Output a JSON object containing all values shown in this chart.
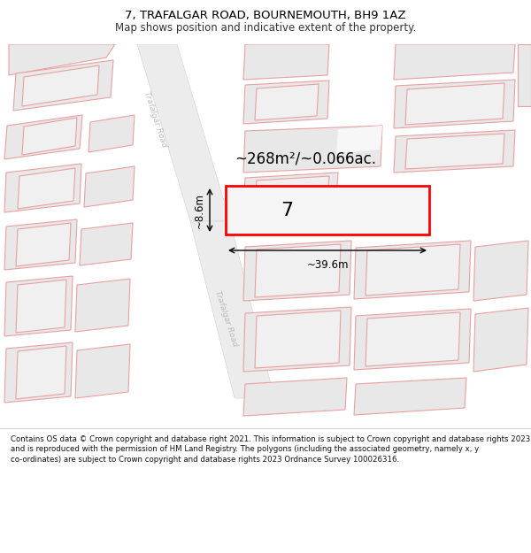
{
  "title": "7, TRAFALGAR ROAD, BOURNEMOUTH, BH9 1AZ",
  "subtitle": "Map shows position and indicative extent of the property.",
  "footer": "Contains OS data © Crown copyright and database right 2021. This information is subject to Crown copyright and database rights 2023 and is reproduced with the permission of HM Land Registry. The polygons (including the associated geometry, namely x, y co-ordinates) are subject to Crown copyright and database rights 2023 Ordnance Survey 100026316.",
  "area_text": "~268m²/~0.066ac.",
  "width_text": "~39.6m",
  "height_text": "~8.6m",
  "property_number": "7",
  "bg_color": "#ffffff",
  "building_fill": "#e8e8e8",
  "building_edge": "#e8a0a0",
  "road_fill": "#ebebeb",
  "highlight_color": "#ff0000",
  "title_fontsize": 9.5,
  "subtitle_fontsize": 8.5,
  "footer_fontsize": 6.2,
  "road_label_color": "#bbbbbb",
  "map_bg": "#f7f7f7"
}
